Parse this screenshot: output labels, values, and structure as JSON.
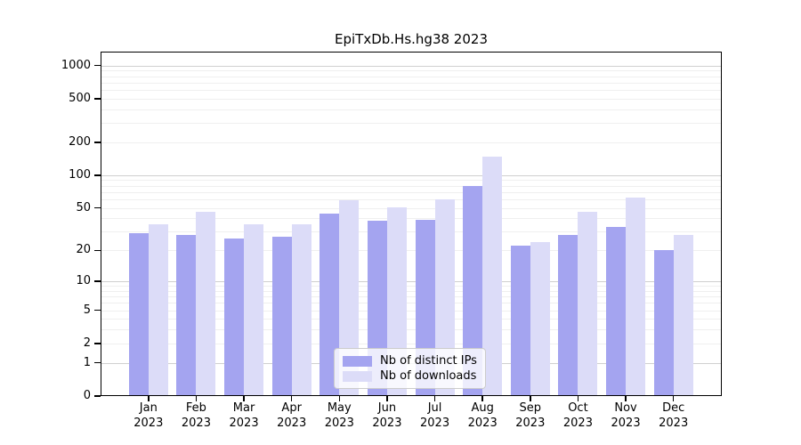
{
  "chart_data": {
    "type": "bar",
    "title": "EpiTxDb.Hs.hg38 2023",
    "categories": [
      "Jan 2023",
      "Feb 2023",
      "Mar 2023",
      "Apr 2023",
      "May 2023",
      "Jun 2023",
      "Jul 2023",
      "Aug 2023",
      "Sep 2023",
      "Oct 2023",
      "Nov 2023",
      "Dec 2023"
    ],
    "series": [
      {
        "name": "Nb of distinct IPs",
        "color": "#a4a4f0",
        "values": [
          29,
          28,
          26,
          27,
          44,
          38,
          39,
          79,
          22,
          28,
          33,
          20
        ]
      },
      {
        "name": "Nb of downloads",
        "color": "#dcdcf8",
        "values": [
          35,
          46,
          35,
          35,
          59,
          51,
          60,
          148,
          24,
          46,
          62,
          28
        ]
      }
    ],
    "xlabel": "",
    "ylabel": "",
    "yscale": "log1p",
    "yticks": [
      0,
      1,
      2,
      5,
      10,
      20,
      50,
      100,
      200,
      500,
      1000
    ],
    "ylim": [
      0,
      1340
    ],
    "grid": "horizontal, minor log divisions",
    "legend_position": "inside bottom-center",
    "colors": {
      "axis": "#000000",
      "major_grid": "#d0d0d0",
      "minor_grid": "#efefef"
    }
  }
}
